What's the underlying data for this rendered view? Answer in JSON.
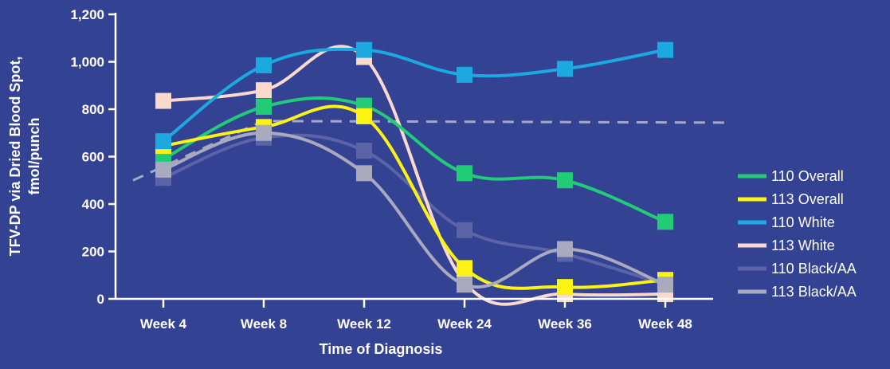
{
  "chart_data": {
    "type": "line",
    "title": "",
    "xlabel": "Time of Diagnosis",
    "ylabel_lines": [
      "TFV-DP via Dried Blood Spot,",
      "fmol/punch"
    ],
    "categories": [
      "Week 4",
      "Week 8",
      "Week 12",
      "Week 24",
      "Week 36",
      "Week 48"
    ],
    "ylim": [
      0,
      1200
    ],
    "yticks": [
      0,
      200,
      400,
      600,
      800,
      1000,
      1200
    ],
    "ytick_labels": [
      "0",
      "200",
      "400",
      "600",
      "800",
      "1,000",
      "1,200"
    ],
    "grid": false,
    "legend_position": "right",
    "reference_line": {
      "style": "dashed",
      "color": "#a3a8c4",
      "value": 750,
      "start_value": 500
    },
    "series": [
      {
        "name": "110 Black/AA",
        "color": "#5a64a6",
        "values": [
          510,
          680,
          625,
          290,
          190,
          60
        ]
      },
      {
        "name": "113 White",
        "color": "#fbd9cf",
        "values": [
          835,
          880,
          1020,
          70,
          20,
          20
        ]
      },
      {
        "name": "110 Overall",
        "color": "#22cc77",
        "values": [
          590,
          810,
          815,
          530,
          500,
          325
        ]
      },
      {
        "name": "113 Overall",
        "color": "#fcf315",
        "values": [
          645,
          725,
          770,
          130,
          50,
          80
        ]
      },
      {
        "name": "113 Black/AA",
        "color": "#a9aabe",
        "values": [
          545,
          700,
          530,
          60,
          210,
          60
        ]
      },
      {
        "name": "110 White",
        "color": "#1ba9e0",
        "values": [
          665,
          985,
          1050,
          945,
          970,
          1050
        ]
      }
    ],
    "legend_order": [
      "110 Overall",
      "113 Overall",
      "110 White",
      "113 White",
      "110 Black/AA",
      "113 Black/AA"
    ]
  }
}
